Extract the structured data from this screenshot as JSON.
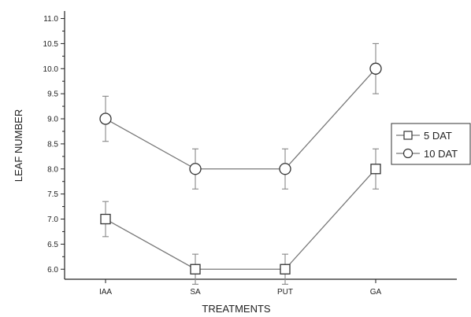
{
  "chart_data": {
    "type": "line",
    "title": "",
    "xlabel": "TREATMENTS",
    "ylabel": "LEAF NUMBER",
    "categories": [
      "IAA",
      "SA",
      "PUT",
      "GA"
    ],
    "ylim": [
      5.8,
      11.15
    ],
    "yticks": [
      "6.0",
      "6.5",
      "7.0",
      "7.5",
      "8.0",
      "8.5",
      "9.0",
      "9.5",
      "10.0",
      "10.5",
      "11.0"
    ],
    "grid": false,
    "legend_position": "right",
    "series": [
      {
        "name": "5 DAT",
        "marker": "square",
        "values": [
          7.0,
          6.0,
          6.0,
          8.0
        ],
        "errors": [
          0.35,
          0.3,
          0.3,
          0.4
        ]
      },
      {
        "name": "10 DAT",
        "marker": "circle",
        "values": [
          9.0,
          8.0,
          8.0,
          10.0
        ],
        "errors": [
          0.45,
          0.4,
          0.4,
          0.5
        ]
      }
    ]
  }
}
